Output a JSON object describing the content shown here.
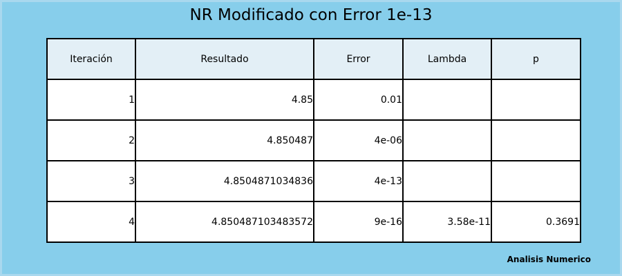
{
  "background_color": "#87ceeb",
  "header_color": "#e3eff6",
  "title": "NR Modificado con Error 1e-13",
  "footer": "Analisis Numerico",
  "chart_data": {
    "type": "table",
    "title": "NR Modificado con Error 1e-13",
    "columns": [
      "Iteración",
      "Resultado",
      "Error",
      "Lambda",
      "p"
    ],
    "rows": [
      [
        "1",
        "4.85",
        "0.01",
        "",
        ""
      ],
      [
        "2",
        "4.850487",
        "4e-06",
        "",
        ""
      ],
      [
        "3",
        "4.8504871034836",
        "4e-13",
        "",
        ""
      ],
      [
        "4",
        "4.850487103483572",
        "9e-16",
        "3.58e-11",
        "0.3691"
      ]
    ]
  }
}
